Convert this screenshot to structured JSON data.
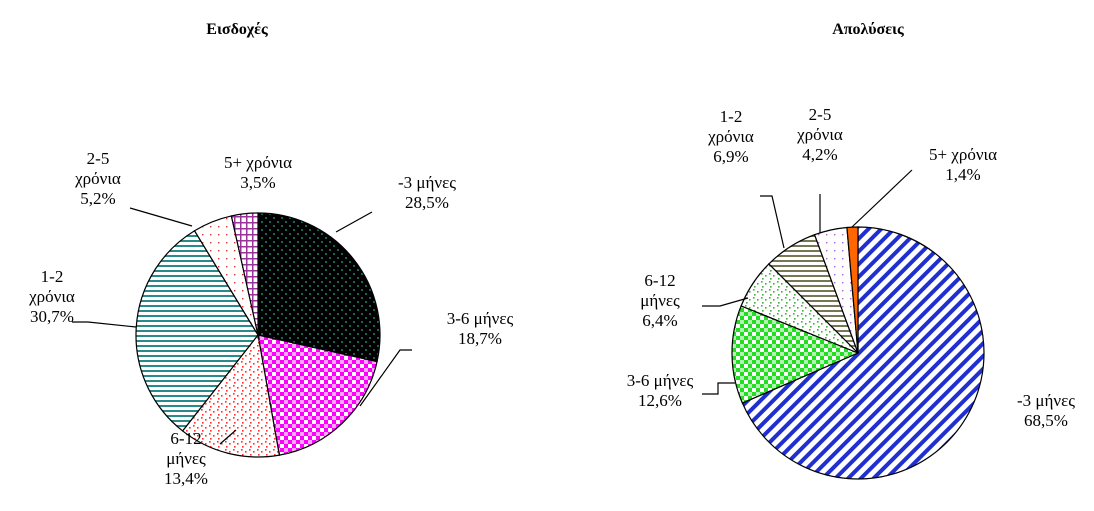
{
  "chart_data": [
    {
      "type": "pie",
      "title": "Εισδοχές",
      "slices": [
        {
          "label": [
            "-3 μήνες"
          ],
          "value": 28.5,
          "value_text": "28,5%",
          "pattern": "dots",
          "fg": "#2aa8a0",
          "bg": "#000000"
        },
        {
          "label": [
            "3-6 μήνες"
          ],
          "value": 18.7,
          "value_text": "18,7%",
          "pattern": "check",
          "fg": "#ff00ff",
          "bg": "#ffffff"
        },
        {
          "label": [
            "6-12",
            "μήνες"
          ],
          "value": 13.4,
          "value_text": "13,4%",
          "pattern": "confetti",
          "fg": "#ff3030",
          "bg": "#ffffff"
        },
        {
          "label": [
            "1-2",
            "χρόνια"
          ],
          "value": 30.7,
          "value_text": "30,7%",
          "pattern": "hstripes",
          "fg": "#2a8a8a",
          "bg": "#ffffff"
        },
        {
          "label": [
            "2-5",
            "χρόνια"
          ],
          "value": 5.2,
          "value_text": "5,2%",
          "pattern": "sparse",
          "fg": "#cc3333",
          "bg": "#ffffff"
        },
        {
          "label": [
            "5+ χρόνια"
          ],
          "value": 3.5,
          "value_text": "3,5%",
          "pattern": "grid",
          "fg": "#993399",
          "bg": "#ffffff"
        }
      ]
    },
    {
      "type": "pie",
      "title": "Απολύσεις",
      "slices": [
        {
          "label": [
            "-3 μήνες"
          ],
          "value": 68.5,
          "value_text": "68,5%",
          "pattern": "diag",
          "fg": "#1f2fd0",
          "bg": "#ffffff"
        },
        {
          "label": [
            "3-6 μήνες"
          ],
          "value": 12.6,
          "value_text": "12,6%",
          "pattern": "check",
          "fg": "#22dd22",
          "bg": "#ffffff"
        },
        {
          "label": [
            "6-12",
            "μήνες"
          ],
          "value": 6.4,
          "value_text": "6,4%",
          "pattern": "confetti",
          "fg": "#44aa44",
          "bg": "#ffffff"
        },
        {
          "label": [
            "1-2",
            "χρόνια"
          ],
          "value": 6.9,
          "value_text": "6,9%",
          "pattern": "hstripes",
          "fg": "#777755",
          "bg": "#ffffff"
        },
        {
          "label": [
            "2-5",
            "χρόνια"
          ],
          "value": 4.2,
          "value_text": "4,2%",
          "pattern": "sparse",
          "fg": "#aa66cc",
          "bg": "#ffffff"
        },
        {
          "label": [
            "5+ χρόνια"
          ],
          "value": 1.4,
          "value_text": "1,4%",
          "pattern": "solid",
          "fg": "#ff6600",
          "bg": "#ff6600"
        }
      ]
    }
  ]
}
